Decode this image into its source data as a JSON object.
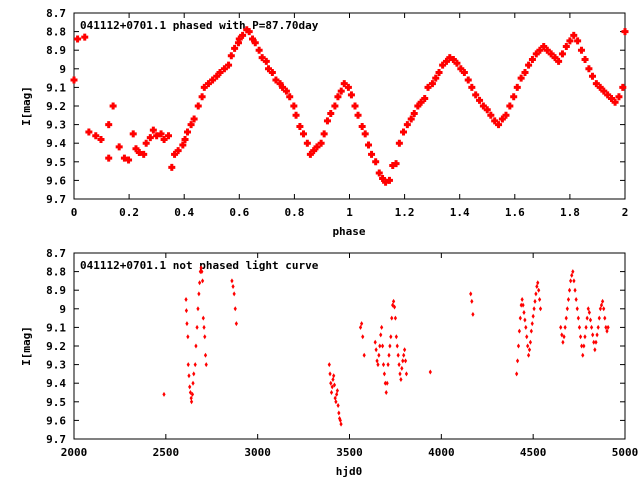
{
  "chart_data": [
    {
      "type": "scatter",
      "title": "041112+0701.1 phased with P=87.70day",
      "xlabel": "phase",
      "ylabel": "I[mag]",
      "xlim": [
        0,
        2
      ],
      "ylim": [
        9.7,
        8.7
      ],
      "y_inverted": true,
      "xticks": [
        "0",
        "0.2",
        "0.4",
        "0.6",
        "0.8",
        "1",
        "1.2",
        "1.4",
        "1.6",
        "1.8",
        "2"
      ],
      "yticks": [
        "8.7",
        "8.8",
        "8.9",
        "9",
        "9.1",
        "9.2",
        "9.3",
        "9.4",
        "9.5",
        "9.6",
        "9.7"
      ],
      "marker_color": "#ff0000",
      "grid": false,
      "x": [
        0.0,
        0.013,
        0.039,
        0.054,
        0.079,
        0.098,
        0.126,
        0.126,
        0.142,
        0.164,
        0.183,
        0.198,
        0.215,
        0.225,
        0.237,
        0.253,
        0.262,
        0.277,
        0.288,
        0.3,
        0.316,
        0.327,
        0.343,
        0.355,
        0.365,
        0.378,
        0.395,
        0.403,
        0.412,
        0.425,
        0.436,
        0.451,
        0.465,
        0.473,
        0.488,
        0.503,
        0.518,
        0.53,
        0.546,
        0.561,
        0.571,
        0.583,
        0.597,
        0.6,
        0.612,
        0.627,
        0.636,
        0.648,
        0.658,
        0.672,
        0.683,
        0.698,
        0.706,
        0.72,
        0.733,
        0.748,
        0.757,
        0.771,
        0.783,
        0.798,
        0.806,
        0.82,
        0.833,
        0.847,
        0.858,
        0.87,
        0.882,
        0.897,
        0.908,
        0.92,
        0.932,
        0.947,
        0.958,
        0.97,
        0.981,
        0.996,
        1.007,
        1.02,
        1.031,
        1.046,
        1.057,
        1.069,
        1.08,
        1.095,
        1.108,
        1.12,
        1.131,
        1.145,
        1.157,
        1.169,
        1.181,
        1.196,
        1.21,
        1.224,
        1.235,
        1.248,
        1.26,
        1.273,
        1.285,
        1.301,
        1.313,
        1.325,
        1.338,
        1.352,
        1.364,
        1.377,
        1.39,
        1.404,
        1.417,
        1.431,
        1.444,
        1.458,
        1.472,
        1.486,
        1.5,
        1.513,
        1.527,
        1.541,
        1.555,
        1.568,
        1.582,
        1.596,
        1.609,
        1.623,
        1.637,
        1.65,
        1.664,
        1.678,
        1.691,
        1.705,
        1.718,
        1.732,
        1.746,
        1.759,
        1.773,
        1.787,
        1.8,
        1.814,
        1.828,
        1.842,
        1.855,
        1.869,
        1.882,
        1.896,
        1.91,
        1.923,
        1.937,
        1.951,
        1.964,
        1.978,
        1.992,
        2.0
      ],
      "y": [
        9.06,
        8.84,
        8.83,
        9.34,
        9.36,
        9.38,
        9.48,
        9.3,
        9.2,
        9.42,
        9.48,
        9.49,
        9.35,
        9.43,
        9.45,
        9.46,
        9.4,
        9.37,
        9.33,
        9.36,
        9.35,
        9.38,
        9.36,
        9.53,
        9.46,
        9.44,
        9.41,
        9.38,
        9.34,
        9.3,
        9.27,
        9.2,
        9.15,
        9.1,
        9.08,
        9.06,
        9.04,
        9.02,
        9.0,
        8.98,
        8.93,
        8.89,
        8.86,
        8.84,
        8.82,
        8.79,
        8.8,
        8.84,
        8.86,
        8.9,
        8.94,
        8.96,
        9.0,
        9.02,
        9.06,
        9.08,
        9.1,
        9.12,
        9.15,
        9.2,
        9.25,
        9.31,
        9.35,
        9.4,
        9.46,
        9.44,
        9.42,
        9.4,
        9.35,
        9.28,
        9.24,
        9.2,
        9.15,
        9.12,
        9.08,
        9.1,
        9.14,
        9.2,
        9.25,
        9.31,
        9.35,
        9.41,
        9.46,
        9.5,
        9.56,
        9.59,
        9.61,
        9.6,
        9.52,
        9.51,
        9.4,
        9.34,
        9.3,
        9.27,
        9.24,
        9.2,
        9.18,
        9.16,
        9.1,
        9.08,
        9.05,
        9.02,
        8.98,
        8.96,
        8.94,
        8.95,
        8.97,
        9.0,
        9.02,
        9.06,
        9.1,
        9.14,
        9.17,
        9.2,
        9.22,
        9.25,
        9.28,
        9.3,
        9.27,
        9.25,
        9.2,
        9.15,
        9.1,
        9.05,
        9.02,
        8.98,
        8.95,
        8.92,
        8.9,
        8.88,
        8.9,
        8.92,
        8.94,
        8.96,
        8.92,
        8.88,
        8.85,
        8.82,
        8.85,
        8.9,
        8.95,
        9.0,
        9.04,
        9.08,
        9.1,
        9.12,
        9.14,
        9.16,
        9.18,
        9.15,
        9.1,
        8.8
      ]
    },
    {
      "type": "scatter",
      "title": "041112+0701.1 not phased light curve",
      "xlabel": "hjd0",
      "ylabel": "I[mag]",
      "xlim": [
        2000,
        5000
      ],
      "ylim": [
        9.7,
        8.7
      ],
      "y_inverted": true,
      "xticks": [
        "2000",
        "2500",
        "3000",
        "3500",
        "4000",
        "4500",
        "5000"
      ],
      "yticks": [
        "8.7",
        "8.8",
        "8.9",
        "9",
        "9.1",
        "9.2",
        "9.3",
        "9.4",
        "9.5",
        "9.6",
        "9.7"
      ],
      "marker_color": "#ff0000",
      "grid": false,
      "x": [
        2490,
        2610,
        2612,
        2615,
        2620,
        2622,
        2626,
        2630,
        2634,
        2638,
        2640,
        2645,
        2648,
        2652,
        2660,
        2664,
        2670,
        2675,
        2680,
        2684,
        2688,
        2692,
        2696,
        2700,
        2704,
        2708,
        2712,
        2716,
        2720,
        2860,
        2866,
        2872,
        2878,
        2884,
        3390,
        3394,
        3398,
        3402,
        3406,
        3410,
        3414,
        3418,
        3422,
        3426,
        3430,
        3434,
        3438,
        3442,
        3446,
        3450,
        3454,
        3560,
        3566,
        3572,
        3580,
        3640,
        3645,
        3650,
        3655,
        3660,
        3665,
        3670,
        3675,
        3680,
        3685,
        3690,
        3695,
        3700,
        3705,
        3710,
        3715,
        3720,
        3725,
        3730,
        3735,
        3740,
        3745,
        3750,
        3755,
        3760,
        3765,
        3770,
        3775,
        3780,
        3785,
        3790,
        3795,
        3800,
        3805,
        3810,
        3940,
        4160,
        4166,
        4172,
        4410,
        4415,
        4420,
        4425,
        4430,
        4435,
        4440,
        4445,
        4450,
        4455,
        4460,
        4465,
        4470,
        4475,
        4480,
        4485,
        4490,
        4495,
        4500,
        4505,
        4510,
        4515,
        4520,
        4525,
        4530,
        4535,
        4540,
        4650,
        4656,
        4662,
        4668,
        4674,
        4680,
        4686,
        4692,
        4698,
        4704,
        4710,
        4716,
        4722,
        4728,
        4734,
        4740,
        4746,
        4752,
        4758,
        4764,
        4770,
        4776,
        4782,
        4788,
        4794,
        4800,
        4806,
        4812,
        4818,
        4824,
        4830,
        4836,
        4842,
        4848,
        4854,
        4860,
        4866,
        4872,
        4878,
        4884,
        4890,
        4896,
        4902,
        4908
      ],
      "y": [
        9.46,
        8.95,
        9.01,
        9.08,
        9.15,
        9.3,
        9.36,
        9.42,
        9.45,
        9.48,
        9.5,
        9.46,
        9.4,
        9.35,
        9.3,
        9.2,
        9.1,
        9.0,
        8.92,
        8.86,
        8.8,
        8.78,
        8.8,
        8.85,
        9.05,
        9.1,
        9.15,
        9.25,
        9.3,
        8.85,
        8.88,
        8.92,
        9.0,
        9.08,
        9.3,
        9.35,
        9.4,
        9.45,
        9.42,
        9.38,
        9.36,
        9.41,
        9.48,
        9.5,
        9.46,
        9.44,
        9.52,
        9.56,
        9.59,
        9.6,
        9.62,
        9.1,
        9.08,
        9.15,
        9.25,
        9.18,
        9.22,
        9.28,
        9.3,
        9.25,
        9.2,
        9.14,
        9.1,
        9.2,
        9.3,
        9.35,
        9.4,
        9.45,
        9.4,
        9.3,
        9.25,
        9.2,
        9.15,
        9.05,
        8.98,
        8.96,
        8.99,
        9.05,
        9.15,
        9.2,
        9.25,
        9.3,
        9.35,
        9.38,
        9.32,
        9.28,
        9.25,
        9.22,
        9.28,
        9.35,
        9.34,
        8.92,
        8.96,
        9.03,
        9.35,
        9.28,
        9.2,
        9.12,
        9.05,
        8.98,
        8.95,
        8.98,
        9.02,
        9.06,
        9.1,
        9.15,
        9.2,
        9.25,
        9.22,
        9.18,
        9.12,
        9.08,
        9.04,
        9.0,
        8.96,
        8.92,
        8.88,
        8.86,
        8.9,
        8.95,
        9.0,
        9.1,
        9.14,
        9.18,
        9.15,
        9.1,
        9.05,
        9.0,
        8.95,
        8.9,
        8.85,
        8.82,
        8.8,
        8.85,
        8.9,
        8.95,
        9.0,
        9.05,
        9.1,
        9.15,
        9.2,
        9.25,
        9.2,
        9.15,
        9.1,
        9.05,
        9.0,
        9.02,
        9.06,
        9.1,
        9.14,
        9.18,
        9.22,
        9.18,
        9.14,
        9.1,
        9.05,
        9.0,
        8.98,
        8.96,
        9.0,
        9.05,
        9.1,
        9.12,
        9.1
      ]
    }
  ]
}
